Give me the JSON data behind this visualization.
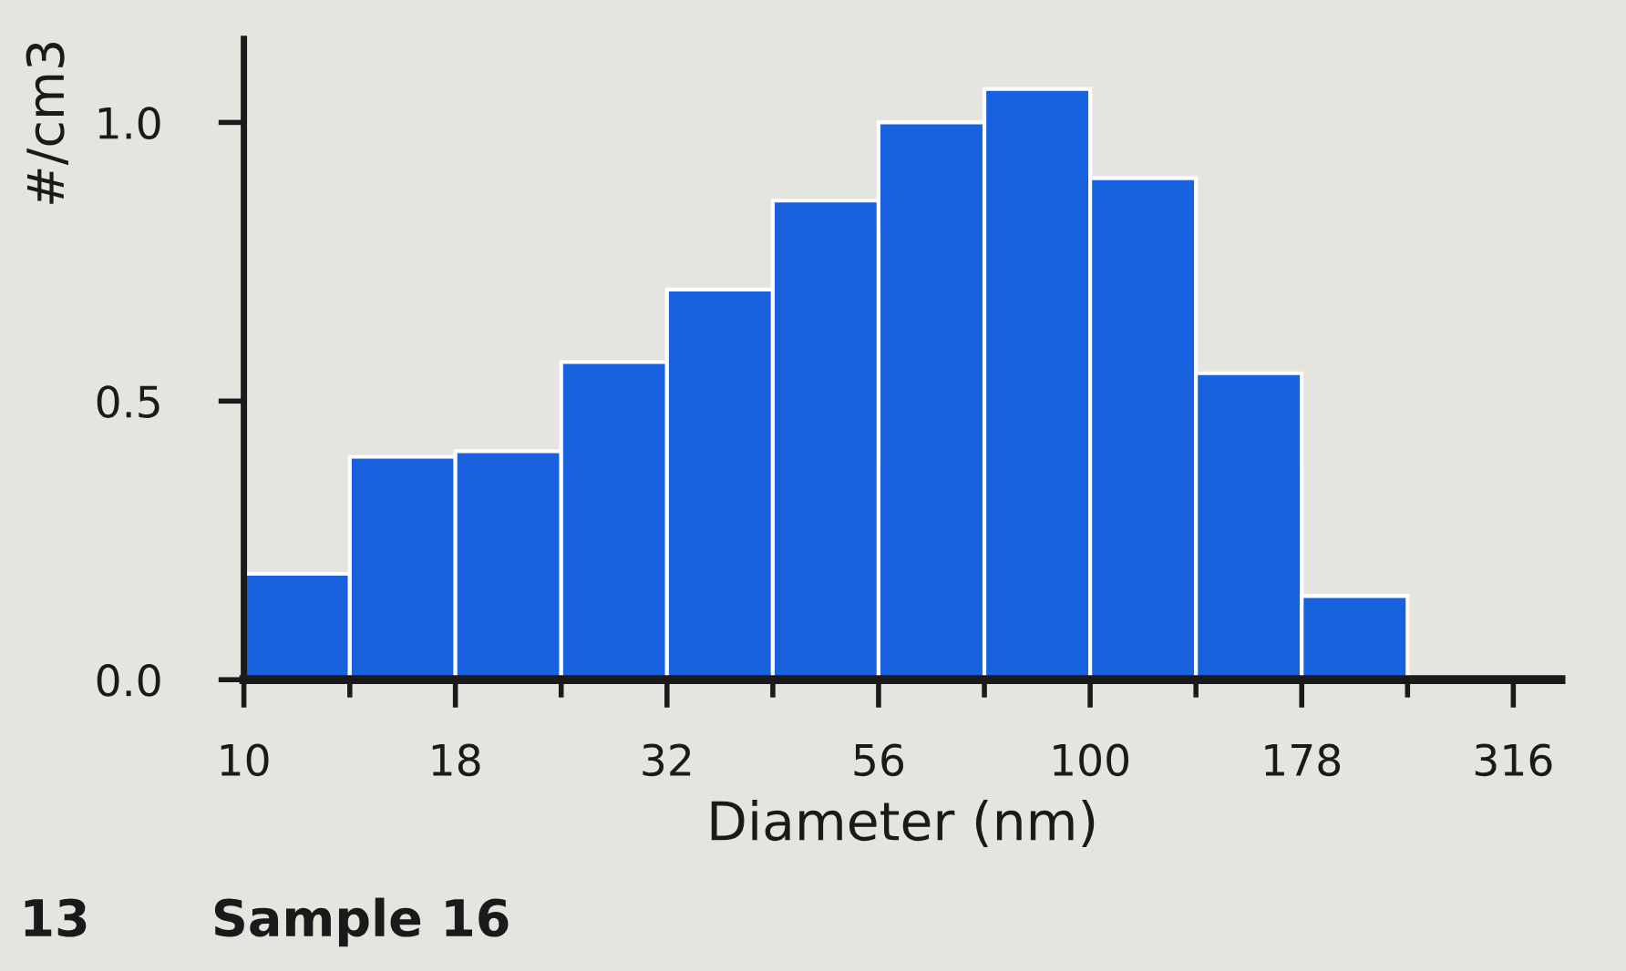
{
  "chart_data": {
    "type": "histogram",
    "xlabel": "Diameter (nm)",
    "ylabel": "#/cm3",
    "bins": [
      10,
      13.34,
      17.78,
      23.71,
      31.62,
      42.17,
      56.23,
      74.99,
      100,
      133.35,
      177.83,
      237.14
    ],
    "values": [
      0.19,
      0.4,
      0.41,
      0.57,
      0.7,
      0.86,
      1.0,
      1.06,
      0.9,
      0.55,
      0.15
    ],
    "color": "#1862e0",
    "log": "x",
    "xlim": [
      10,
      360
    ],
    "xticks": [
      10,
      {
        "value": 13.34,
        "label": null
      },
      {
        "value": 17.78,
        "label": "18"
      },
      {
        "value": 23.71,
        "label": null
      },
      {
        "value": 31.62,
        "label": "32"
      },
      {
        "value": 42.17,
        "label": null
      },
      {
        "value": 56.23,
        "label": "56"
      },
      {
        "value": 74.99,
        "label": null
      },
      100,
      {
        "value": 133.35,
        "label": null
      },
      {
        "value": 177.83,
        "label": "178"
      },
      {
        "value": 237.14,
        "label": null
      },
      {
        "value": 316.23,
        "label": "316"
      }
    ],
    "ylim": [
      0,
      1.15
    ],
    "yticks": [
      {
        "value": 0,
        "label": "0.0"
      },
      0.5,
      {
        "value": 1,
        "label": "1.0"
      }
    ],
    "annotations": [
      "13",
      "Sample 16"
    ]
  }
}
